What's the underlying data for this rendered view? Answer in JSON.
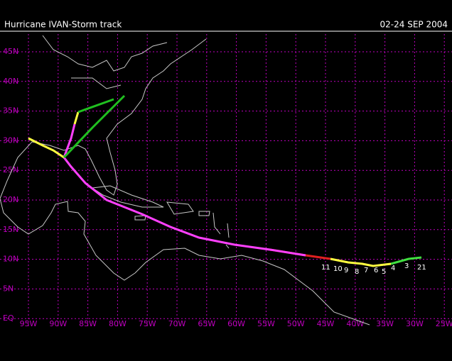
{
  "header": {
    "title": "Hurricane IVAN-Storm track",
    "date": "02-24 SEP 2004"
  },
  "map": {
    "latitude_labels": [
      "45N",
      "40N",
      "35N",
      "30N",
      "25N",
      "20N",
      "15N",
      "10N",
      "5N",
      "EQ"
    ],
    "longitude_labels": [
      "95W",
      "90W",
      "85W",
      "80W",
      "75W",
      "70W",
      "65W",
      "60W",
      "55W",
      "50W",
      "45W",
      "40W",
      "35W",
      "30W",
      "25W"
    ],
    "track_labels": [
      "21",
      "3",
      "4",
      "5",
      "6",
      "7",
      "8",
      "9",
      "10",
      "11"
    ]
  }
}
